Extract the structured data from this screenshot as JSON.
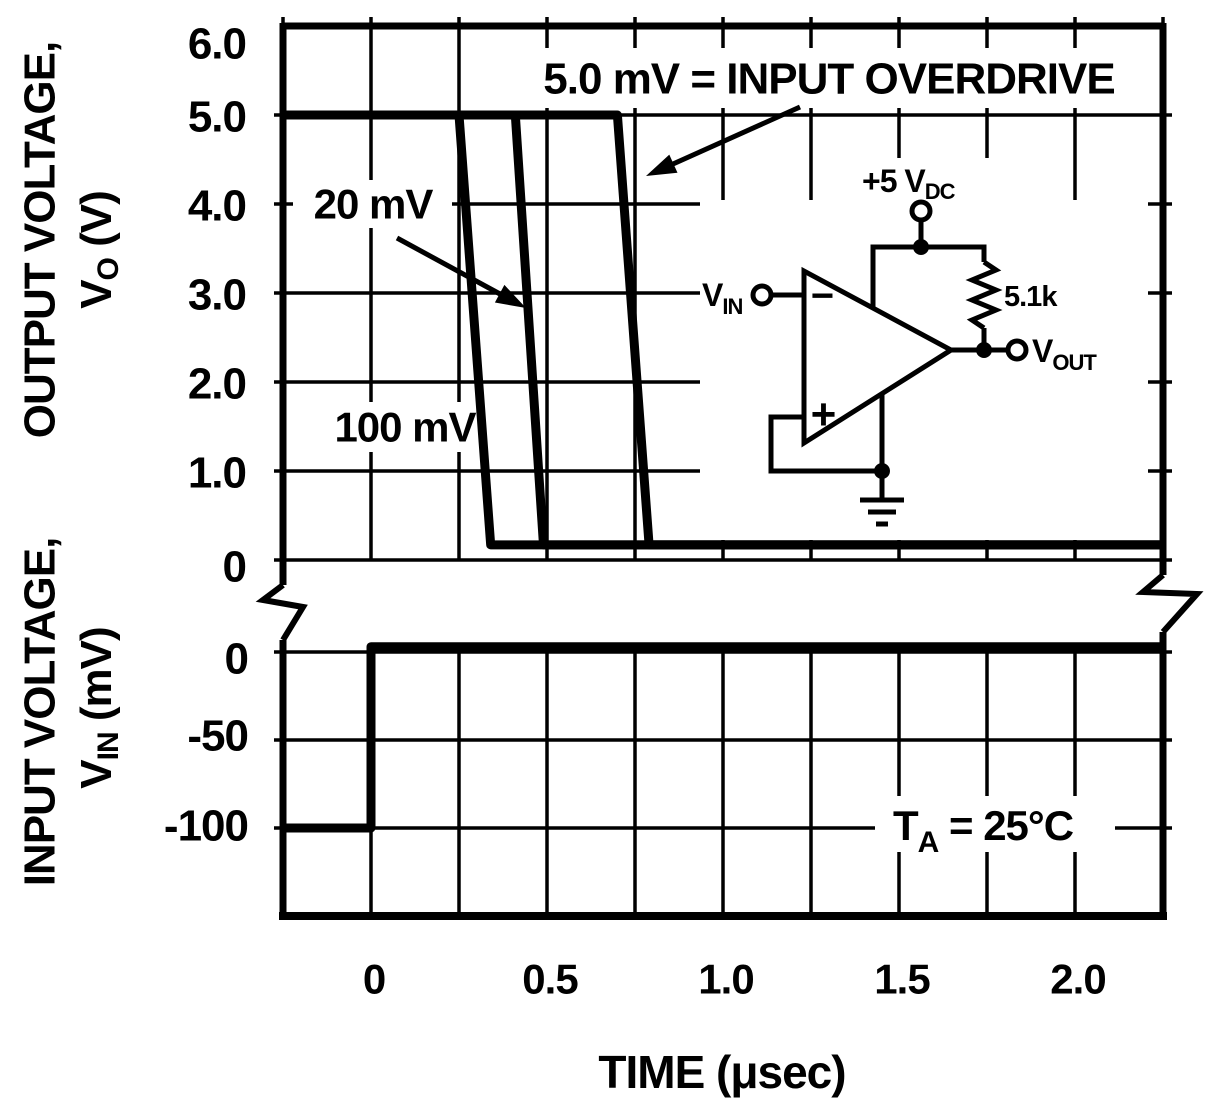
{
  "figure": {
    "background": "#ffffff",
    "ink_color": "#000000",
    "condition_label": {
      "t": "T",
      "sub": "A",
      "rest": " = 25°C"
    }
  },
  "labels": {
    "overdrive": "5.0 mV = INPUT OVERDRIVE",
    "mv20": "20 mV",
    "mv100": "100 mV",
    "time_axis": "TIME (μsec)",
    "out_title": "OUTPUT VOLTAGE,",
    "out_v": "V",
    "out_sub": "O",
    "out_unit": " (V)",
    "in_title": "INPUT VOLTAGE,",
    "in_v": "V",
    "in_sub": "IN",
    "in_unit": " (mV)"
  },
  "circuit": {
    "supply": "+5 V",
    "supply_sub": "DC",
    "resistor": "5.1k",
    "vin": "V",
    "vin_sub": "IN",
    "vout": "V",
    "vout_sub": "OUT",
    "inverting_input": "−",
    "noninverting_input": "+"
  },
  "chart_data": {
    "type": "line",
    "title": "",
    "xlabel": "TIME (μsec)",
    "x_ticks": [
      "0",
      "0.5",
      "1.0",
      "1.5",
      "2.0"
    ],
    "x_tick_values": [
      0,
      0.5,
      1.0,
      1.5,
      2.0
    ],
    "xlim": [
      -0.25,
      2.25
    ],
    "grid": true,
    "legend_position": "none",
    "panels": [
      {
        "name": "output",
        "ylabel": "OUTPUT VOLTAGE, VO (V)",
        "ylim": [
          0,
          6
        ],
        "y_ticks": [
          "6.0",
          "5.0",
          "4.0",
          "3.0",
          "2.0",
          "1.0",
          "0"
        ],
        "y_tick_values": [
          6,
          5,
          4,
          3,
          2,
          1,
          0
        ],
        "series": [
          {
            "name": "100 mV overdrive",
            "points": [
              [
                -0.25,
                5.0
              ],
              [
                0.25,
                5.0
              ],
              [
                0.34,
                0.17
              ],
              [
                2.25,
                0.17
              ]
            ]
          },
          {
            "name": "20 mV overdrive",
            "points": [
              [
                -0.25,
                5.0
              ],
              [
                0.41,
                5.0
              ],
              [
                0.49,
                0.17
              ],
              [
                2.25,
                0.17
              ]
            ]
          },
          {
            "name": "5.0 mV overdrive",
            "points": [
              [
                -0.25,
                5.0
              ],
              [
                0.7,
                5.0
              ],
              [
                0.79,
                0.17
              ],
              [
                2.25,
                0.17
              ]
            ]
          }
        ]
      },
      {
        "name": "input",
        "ylabel": "INPUT VOLTAGE, VIN (mV)",
        "ylim": [
          -150,
          25
        ],
        "y_ticks": [
          "0",
          "-50",
          "-100"
        ],
        "y_tick_values": [
          0,
          -50,
          -100
        ],
        "series": [
          {
            "name": "input step",
            "points": [
              [
                -0.25,
                -100
              ],
              [
                0,
                -100
              ],
              [
                0,
                3
              ],
              [
                2.25,
                3
              ]
            ]
          }
        ]
      }
    ],
    "annotations": [
      "5.0 mV = INPUT OVERDRIVE",
      "20 mV",
      "100 mV",
      "TA = 25°C"
    ],
    "axis_break": true
  }
}
